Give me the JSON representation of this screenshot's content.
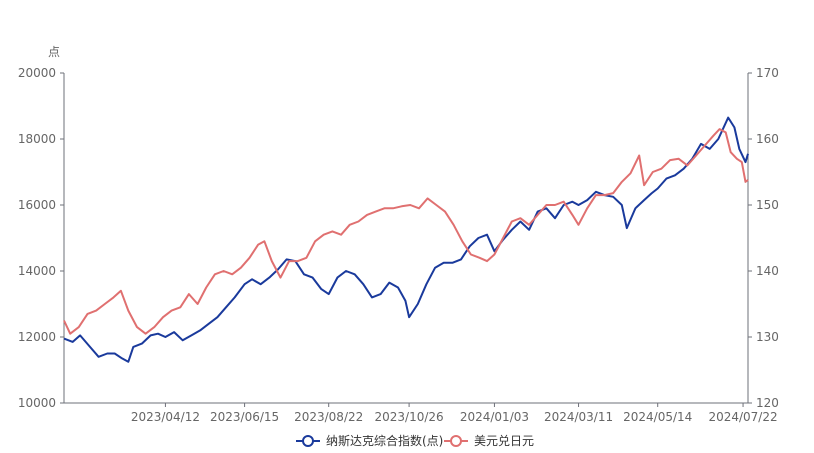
{
  "chart_data": {
    "type": "line",
    "y_left_unit": "点",
    "y_left_range": [
      10000,
      20000
    ],
    "y_left_ticks": [
      "10000",
      "12000",
      "14000",
      "16000",
      "18000",
      "20000"
    ],
    "y_right_range": [
      120,
      170
    ],
    "y_right_ticks": [
      "120",
      "130",
      "140",
      "150",
      "160",
      "170"
    ],
    "x_range": [
      "2023-01-20",
      "2024-07-26"
    ],
    "x_tick_labels": [
      "2023/04/12",
      "2023/06/15",
      "2023/08/22",
      "2023/10/26",
      "2024/01/03",
      "2024/03/11",
      "2024/05/14",
      "2024/07/22"
    ],
    "x_tick_dates": [
      "2023-04-12",
      "2023-06-15",
      "2023-08-22",
      "2023-10-26",
      "2024-01-03",
      "2024-03-11",
      "2024-05-14",
      "2024-07-22"
    ],
    "grid": false,
    "legend_position": "bottom-center",
    "series": [
      {
        "name": "纳斯达克综合指数(点)",
        "axis": "left",
        "color": "#1a3a9c",
        "points": [
          [
            "2023-01-20",
            11950
          ],
          [
            "2023-01-27",
            11850
          ],
          [
            "2023-02-02",
            12050
          ],
          [
            "2023-02-10",
            11700
          ],
          [
            "2023-02-17",
            11400
          ],
          [
            "2023-02-24",
            11500
          ],
          [
            "2023-03-02",
            11500
          ],
          [
            "2023-03-08",
            11350
          ],
          [
            "2023-03-13",
            11250
          ],
          [
            "2023-03-17",
            11700
          ],
          [
            "2023-03-24",
            11800
          ],
          [
            "2023-03-31",
            12050
          ],
          [
            "2023-04-06",
            12100
          ],
          [
            "2023-04-12",
            12000
          ],
          [
            "2023-04-19",
            12150
          ],
          [
            "2023-04-26",
            11900
          ],
          [
            "2023-05-03",
            12050
          ],
          [
            "2023-05-10",
            12200
          ],
          [
            "2023-05-17",
            12400
          ],
          [
            "2023-05-24",
            12600
          ],
          [
            "2023-05-31",
            12900
          ],
          [
            "2023-06-07",
            13200
          ],
          [
            "2023-06-15",
            13600
          ],
          [
            "2023-06-21",
            13750
          ],
          [
            "2023-06-28",
            13600
          ],
          [
            "2023-07-05",
            13800
          ],
          [
            "2023-07-12",
            14050
          ],
          [
            "2023-07-19",
            14350
          ],
          [
            "2023-07-26",
            14300
          ],
          [
            "2023-08-02",
            13900
          ],
          [
            "2023-08-09",
            13800
          ],
          [
            "2023-08-16",
            13450
          ],
          [
            "2023-08-22",
            13300
          ],
          [
            "2023-08-29",
            13800
          ],
          [
            "2023-09-05",
            14000
          ],
          [
            "2023-09-12",
            13900
          ],
          [
            "2023-09-19",
            13600
          ],
          [
            "2023-09-26",
            13200
          ],
          [
            "2023-10-03",
            13300
          ],
          [
            "2023-10-10",
            13650
          ],
          [
            "2023-10-17",
            13500
          ],
          [
            "2023-10-23",
            13100
          ],
          [
            "2023-10-26",
            12600
          ],
          [
            "2023-11-02",
            13000
          ],
          [
            "2023-11-09",
            13600
          ],
          [
            "2023-11-16",
            14100
          ],
          [
            "2023-11-23",
            14250
          ],
          [
            "2023-11-30",
            14250
          ],
          [
            "2023-12-07",
            14350
          ],
          [
            "2023-12-14",
            14750
          ],
          [
            "2023-12-21",
            15000
          ],
          [
            "2023-12-28",
            15100
          ],
          [
            "2024-01-03",
            14600
          ],
          [
            "2024-01-10",
            14950
          ],
          [
            "2024-01-17",
            15250
          ],
          [
            "2024-01-24",
            15500
          ],
          [
            "2024-01-31",
            15250
          ],
          [
            "2024-02-07",
            15800
          ],
          [
            "2024-02-14",
            15900
          ],
          [
            "2024-02-21",
            15600
          ],
          [
            "2024-02-28",
            16000
          ],
          [
            "2024-03-06",
            16100
          ],
          [
            "2024-03-11",
            16000
          ],
          [
            "2024-03-18",
            16150
          ],
          [
            "2024-03-25",
            16400
          ],
          [
            "2024-04-01",
            16300
          ],
          [
            "2024-04-08",
            16250
          ],
          [
            "2024-04-15",
            16000
          ],
          [
            "2024-04-19",
            15300
          ],
          [
            "2024-04-26",
            15900
          ],
          [
            "2024-05-03",
            16150
          ],
          [
            "2024-05-09",
            16350
          ],
          [
            "2024-05-14",
            16500
          ],
          [
            "2024-05-21",
            16800
          ],
          [
            "2024-05-28",
            16900
          ],
          [
            "2024-06-04",
            17100
          ],
          [
            "2024-06-11",
            17400
          ],
          [
            "2024-06-18",
            17850
          ],
          [
            "2024-06-25",
            17700
          ],
          [
            "2024-07-02",
            18000
          ],
          [
            "2024-07-10",
            18650
          ],
          [
            "2024-07-15",
            18350
          ],
          [
            "2024-07-19",
            17700
          ],
          [
            "2024-07-24",
            17300
          ],
          [
            "2024-07-26",
            17550
          ]
        ]
      },
      {
        "name": "美元兑日元",
        "axis": "right",
        "color": "#e07070",
        "points": [
          [
            "2023-01-20",
            132.5
          ],
          [
            "2023-01-25",
            130.5
          ],
          [
            "2023-02-01",
            131.5
          ],
          [
            "2023-02-08",
            133.5
          ],
          [
            "2023-02-15",
            134.0
          ],
          [
            "2023-02-22",
            135.0
          ],
          [
            "2023-03-01",
            136.0
          ],
          [
            "2023-03-07",
            137.0
          ],
          [
            "2023-03-13",
            134.0
          ],
          [
            "2023-03-20",
            131.5
          ],
          [
            "2023-03-27",
            130.5
          ],
          [
            "2023-04-03",
            131.5
          ],
          [
            "2023-04-10",
            133.0
          ],
          [
            "2023-04-17",
            134.0
          ],
          [
            "2023-04-24",
            134.5
          ],
          [
            "2023-05-01",
            136.5
          ],
          [
            "2023-05-08",
            135.0
          ],
          [
            "2023-05-15",
            137.5
          ],
          [
            "2023-05-22",
            139.5
          ],
          [
            "2023-05-29",
            140.0
          ],
          [
            "2023-06-05",
            139.5
          ],
          [
            "2023-06-12",
            140.5
          ],
          [
            "2023-06-19",
            142.0
          ],
          [
            "2023-06-26",
            144.0
          ],
          [
            "2023-07-01",
            144.5
          ],
          [
            "2023-07-07",
            141.5
          ],
          [
            "2023-07-14",
            139.0
          ],
          [
            "2023-07-21",
            141.5
          ],
          [
            "2023-07-28",
            141.5
          ],
          [
            "2023-08-04",
            142.0
          ],
          [
            "2023-08-11",
            144.5
          ],
          [
            "2023-08-18",
            145.5
          ],
          [
            "2023-08-25",
            146.0
          ],
          [
            "2023-09-01",
            145.5
          ],
          [
            "2023-09-08",
            147.0
          ],
          [
            "2023-09-15",
            147.5
          ],
          [
            "2023-09-22",
            148.5
          ],
          [
            "2023-09-29",
            149.0
          ],
          [
            "2023-10-06",
            149.5
          ],
          [
            "2023-10-13",
            149.5
          ],
          [
            "2023-10-20",
            149.8
          ],
          [
            "2023-10-27",
            150.0
          ],
          [
            "2023-11-03",
            149.5
          ],
          [
            "2023-11-10",
            151.0
          ],
          [
            "2023-11-17",
            150.0
          ],
          [
            "2023-11-24",
            149.0
          ],
          [
            "2023-12-01",
            147.0
          ],
          [
            "2023-12-08",
            144.5
          ],
          [
            "2023-12-15",
            142.5
          ],
          [
            "2023-12-22",
            142.0
          ],
          [
            "2023-12-28",
            141.5
          ],
          [
            "2024-01-03",
            142.5
          ],
          [
            "2024-01-10",
            145.0
          ],
          [
            "2024-01-17",
            147.5
          ],
          [
            "2024-01-24",
            148.0
          ],
          [
            "2024-01-31",
            147.0
          ],
          [
            "2024-02-07",
            148.5
          ],
          [
            "2024-02-14",
            150.0
          ],
          [
            "2024-02-21",
            150.0
          ],
          [
            "2024-02-28",
            150.5
          ],
          [
            "2024-03-06",
            148.5
          ],
          [
            "2024-03-11",
            147.0
          ],
          [
            "2024-03-18",
            149.5
          ],
          [
            "2024-03-25",
            151.5
          ],
          [
            "2024-04-01",
            151.5
          ],
          [
            "2024-04-08",
            151.8
          ],
          [
            "2024-04-15",
            153.5
          ],
          [
            "2024-04-22",
            154.8
          ],
          [
            "2024-04-29",
            157.5
          ],
          [
            "2024-05-03",
            153.0
          ],
          [
            "2024-05-10",
            155.0
          ],
          [
            "2024-05-17",
            155.5
          ],
          [
            "2024-05-24",
            156.8
          ],
          [
            "2024-05-31",
            157.0
          ],
          [
            "2024-06-07",
            156.0
          ],
          [
            "2024-06-14",
            157.5
          ],
          [
            "2024-06-21",
            159.0
          ],
          [
            "2024-06-28",
            160.5
          ],
          [
            "2024-07-03",
            161.5
          ],
          [
            "2024-07-08",
            161.0
          ],
          [
            "2024-07-12",
            158.0
          ],
          [
            "2024-07-17",
            157.0
          ],
          [
            "2024-07-21",
            156.5
          ],
          [
            "2024-07-24",
            153.5
          ],
          [
            "2024-07-26",
            153.8
          ]
        ]
      }
    ]
  }
}
